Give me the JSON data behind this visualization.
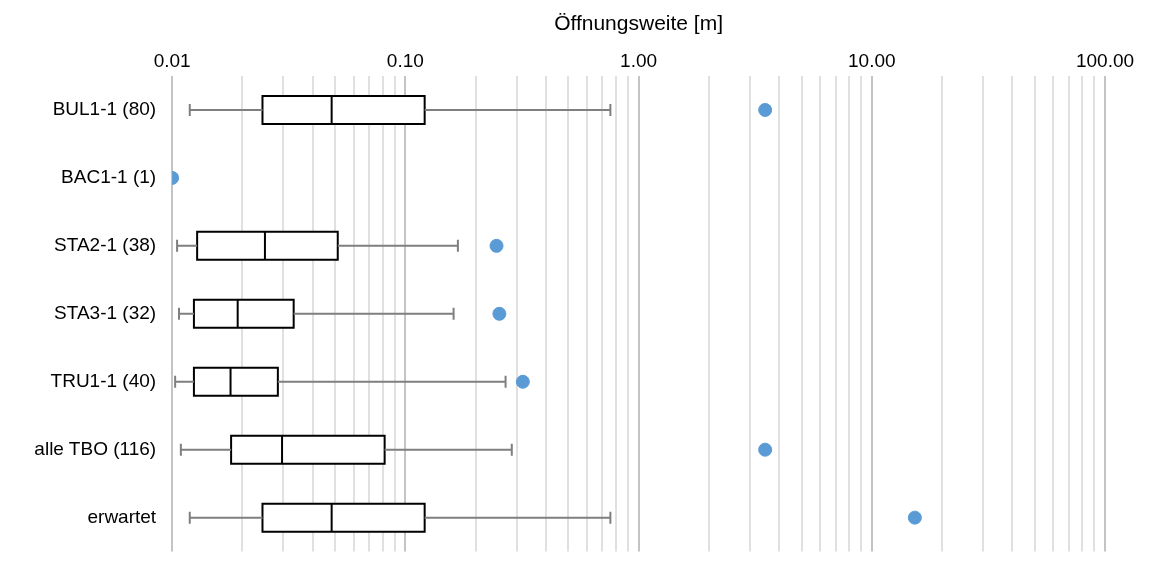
{
  "chart_data": {
    "type": "box",
    "orientation": "horizontal",
    "xlabel": "Öffnungsweite [m]",
    "categories": [
      "BUL1-1 (80)",
      "BAC1-1 (1)",
      "STA2-1 (38)",
      "STA3-1 (32)",
      "TRU1-1 (40)",
      "alle TBO (116)",
      "erwartet"
    ],
    "log": "x",
    "xlim": [
      0.01,
      100
    ],
    "grid": "x",
    "xticks": [
      0.01,
      {
        "value": 0.02,
        "label": null
      },
      {
        "value": 0.03,
        "label": null
      },
      {
        "value": 0.04,
        "label": null
      },
      {
        "value": 0.05,
        "label": null
      },
      {
        "value": 0.06,
        "label": null
      },
      {
        "value": 0.07,
        "label": null
      },
      {
        "value": 0.08,
        "label": null
      },
      {
        "value": 0.09,
        "label": null
      },
      {
        "value": 0.1,
        "label": "0.10"
      },
      {
        "value": 0.2,
        "label": null
      },
      {
        "value": 0.3,
        "label": null
      },
      {
        "value": 0.4,
        "label": null
      },
      {
        "value": 0.5,
        "label": null
      },
      {
        "value": 0.6,
        "label": null
      },
      {
        "value": 0.7,
        "label": null
      },
      {
        "value": 0.8,
        "label": null
      },
      {
        "value": 0.9,
        "label": null
      },
      {
        "value": 1,
        "label": "1.00"
      },
      {
        "value": 2,
        "label": null
      },
      {
        "value": 3,
        "label": null
      },
      {
        "value": 4,
        "label": null
      },
      {
        "value": 5,
        "label": null
      },
      {
        "value": 6,
        "label": null
      },
      {
        "value": 7,
        "label": null
      },
      {
        "value": 8,
        "label": null
      },
      {
        "value": 9,
        "label": null
      },
      {
        "value": 10,
        "label": "10.00"
      },
      {
        "value": 20,
        "label": null
      },
      {
        "value": 30,
        "label": null
      },
      {
        "value": 40,
        "label": null
      },
      {
        "value": 50,
        "label": null
      },
      {
        "value": 60,
        "label": null
      },
      {
        "value": 70,
        "label": null
      },
      {
        "value": 80,
        "label": null
      },
      {
        "value": 90,
        "label": null
      },
      {
        "value": 100,
        "label": "100.00"
      }
    ],
    "series": [
      {
        "type": "box",
        "color": "#ffffff",
        "boxes": [
          {
            "low": 0.0119,
            "q1": 0.0244,
            "median": 0.0483,
            "q3": 0.121,
            "high": 0.757
          },
          null,
          {
            "low": 0.0105,
            "q1": 0.0128,
            "median": 0.025,
            "q3": 0.0513,
            "high": 0.168
          },
          {
            "low": 0.0107,
            "q1": 0.0124,
            "median": 0.0191,
            "q3": 0.0332,
            "high": 0.161
          },
          {
            "low": 0.0103,
            "q1": 0.0124,
            "median": 0.0178,
            "q3": 0.0284,
            "high": 0.269
          },
          {
            "low": 0.0109,
            "q1": 0.0179,
            "median": 0.0296,
            "q3": 0.0815,
            "high": 0.286
          },
          {
            "low": 0.0119,
            "q1": 0.0244,
            "median": 0.0483,
            "q3": 0.121,
            "high": 0.757
          }
        ]
      },
      {
        "type": "scatter",
        "color": "#5b9bd5",
        "marker": "circle",
        "x": [
          "BUL1-1 (80)",
          "BAC1-1 (1)",
          "STA2-1 (38)",
          "STA3-1 (32)",
          "TRU1-1 (40)",
          "alle TBO (116)",
          "erwartet"
        ],
        "values": [
          3.49,
          0.01,
          0.246,
          0.253,
          0.319,
          3.49,
          15.3
        ]
      }
    ]
  }
}
